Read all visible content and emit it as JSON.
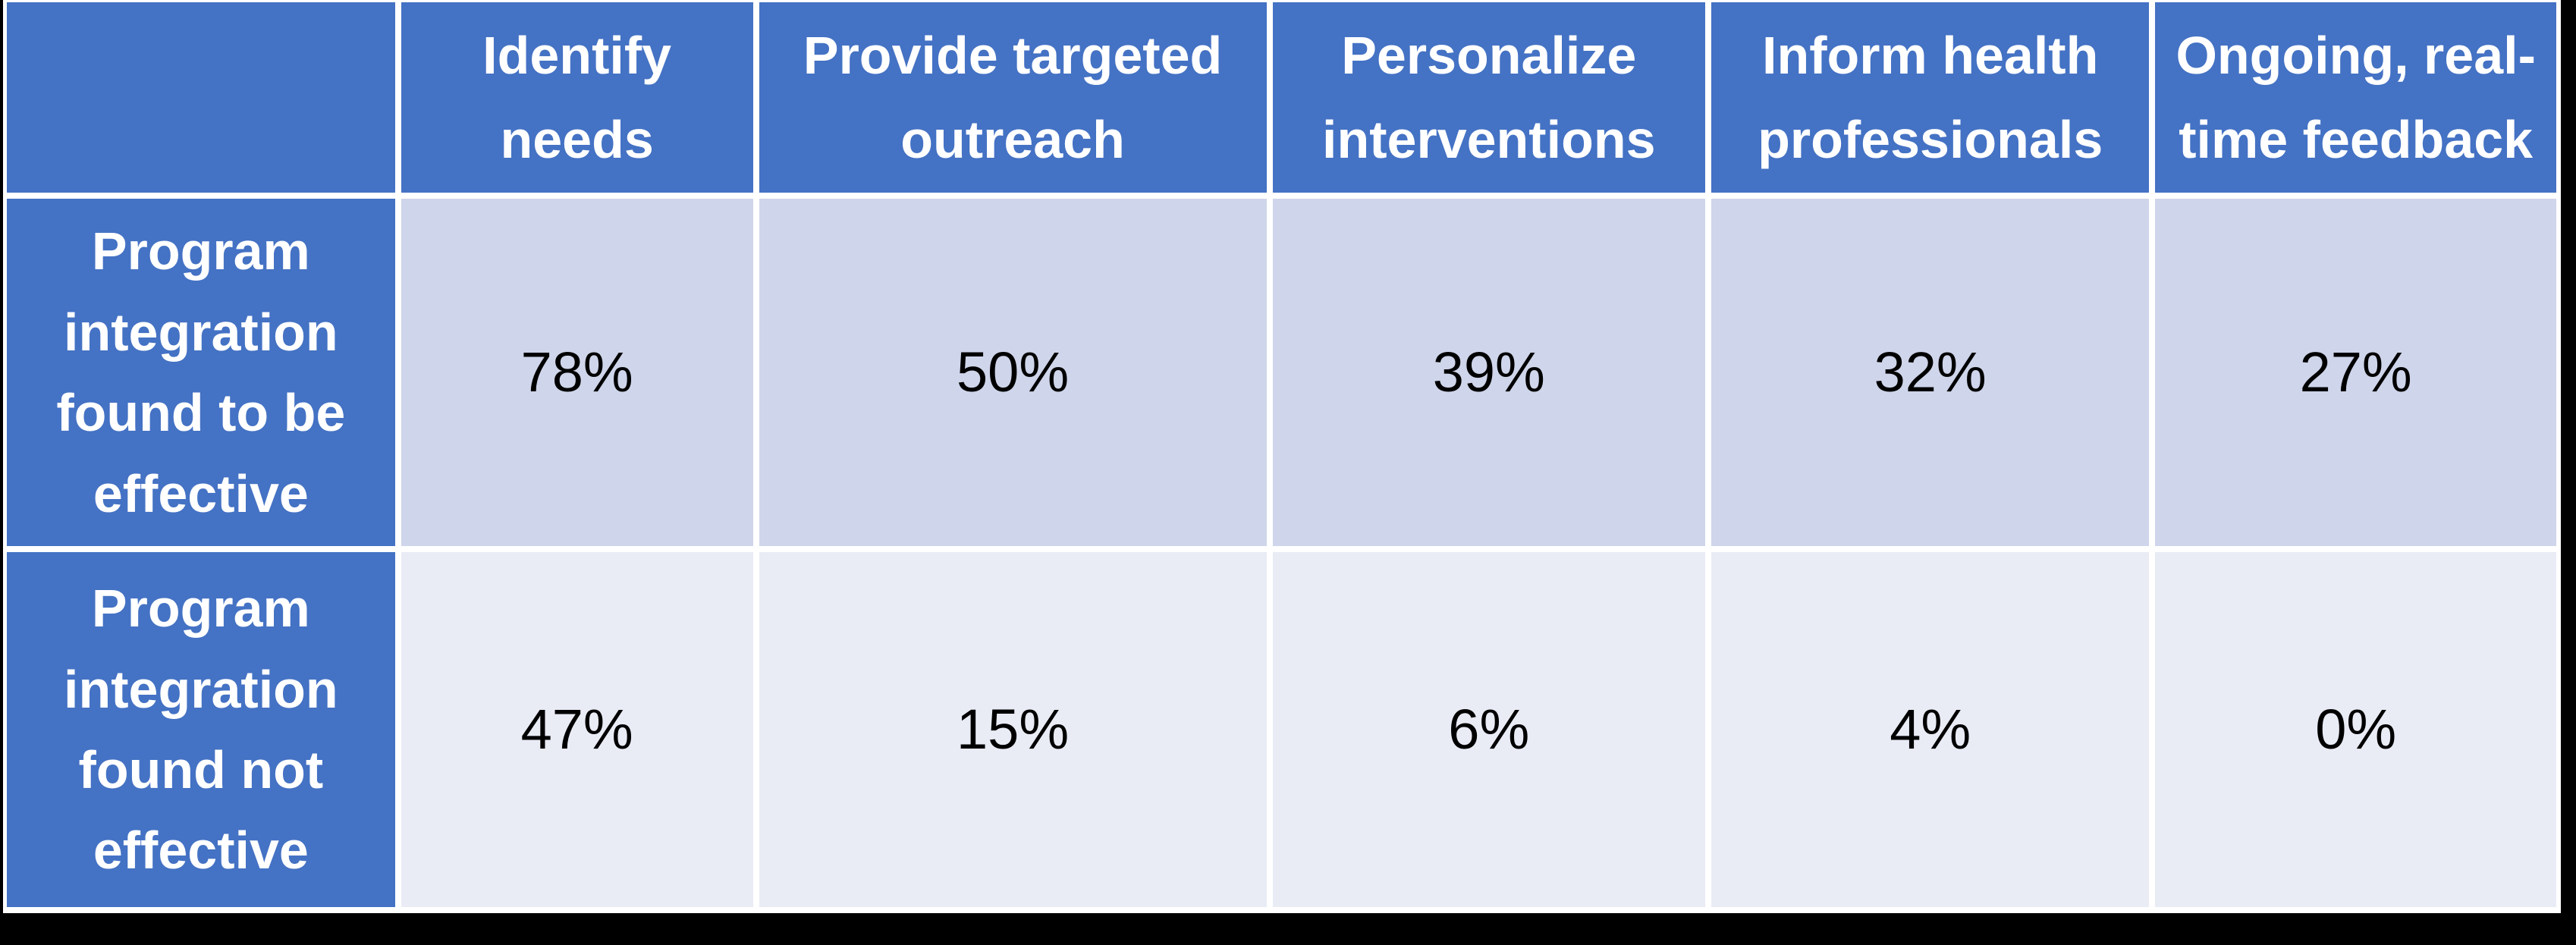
{
  "table": {
    "columns": [
      "",
      "Identify needs",
      "Provide targeted outreach",
      "Personalize interventions",
      "Inform health professionals",
      "Ongoing, real-time feedback"
    ],
    "rows": [
      {
        "label": "Program integration found to be effective",
        "values": [
          "78%",
          "50%",
          "39%",
          "32%",
          "27%"
        ]
      },
      {
        "label": "Program integration found not effective",
        "values": [
          "47%",
          "15%",
          "6%",
          "4%",
          "0%"
        ]
      }
    ]
  },
  "colors": {
    "header_blue": "#4472C4",
    "band_row1": "#CFD5EA",
    "band_row2": "#E9EBF5",
    "gridline": "#FFFFFF",
    "outer_frame": "#000000",
    "header_text": "#FFFFFF",
    "value_text": "#000000"
  },
  "chart_data": {
    "type": "table",
    "title": "",
    "columns": [
      "Identify needs",
      "Provide targeted outreach",
      "Personalize interventions",
      "Inform health professionals",
      "Ongoing, real-time feedback"
    ],
    "rows": [
      {
        "label": "Program integration found to be effective",
        "values_percent": [
          78,
          50,
          39,
          32,
          27
        ]
      },
      {
        "label": "Program integration found not effective",
        "values_percent": [
          47,
          15,
          6,
          4,
          0
        ]
      }
    ]
  }
}
